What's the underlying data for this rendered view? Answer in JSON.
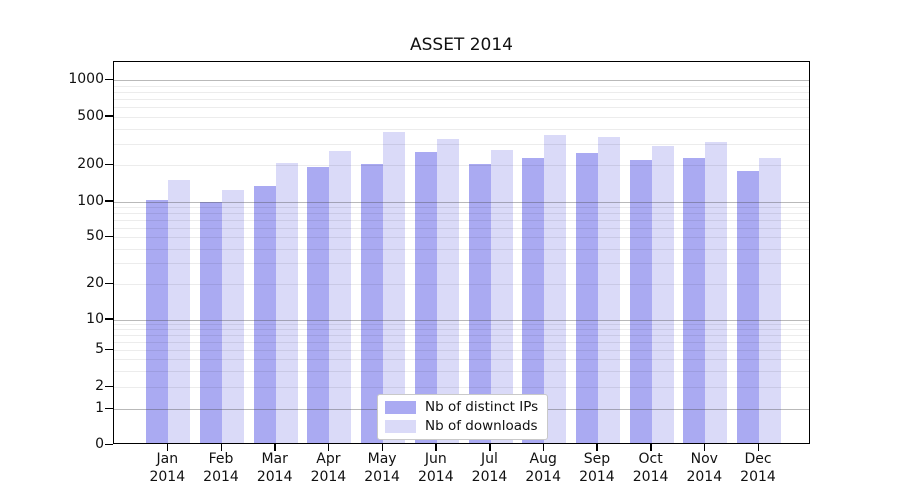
{
  "chart_data": {
    "type": "bar",
    "title": "ASSET 2014",
    "xlabel": "",
    "ylabel": "",
    "y_scale": "symlog",
    "grid": true,
    "legend_position": "lower center",
    "categories": [
      "Jan 2014",
      "Feb 2014",
      "Mar 2014",
      "Apr 2014",
      "May 2014",
      "Jun 2014",
      "Jul 2014",
      "Aug 2014",
      "Sep 2014",
      "Oct 2014",
      "Nov 2014",
      "Dec 2014"
    ],
    "y_ticks": [
      1000,
      500,
      200,
      100,
      50,
      20,
      10,
      5,
      2,
      1,
      0
    ],
    "ylim": [
      0,
      1400
    ],
    "series": [
      {
        "name": "Nb of distinct IPs",
        "color": "#aaaaf2",
        "values": [
          100,
          95,
          130,
          185,
          195,
          245,
          195,
          220,
          240,
          210,
          220,
          172
        ]
      },
      {
        "name": "Nb of downloads",
        "color": "#dadaf8",
        "values": [
          145,
          120,
          200,
          250,
          360,
          315,
          255,
          340,
          330,
          275,
          300,
          218
        ]
      }
    ]
  },
  "colors": {
    "axis": "#000000",
    "major_grid": "#b5b5b5",
    "minor_grid": "#ebebeb",
    "background": "#ffffff"
  }
}
